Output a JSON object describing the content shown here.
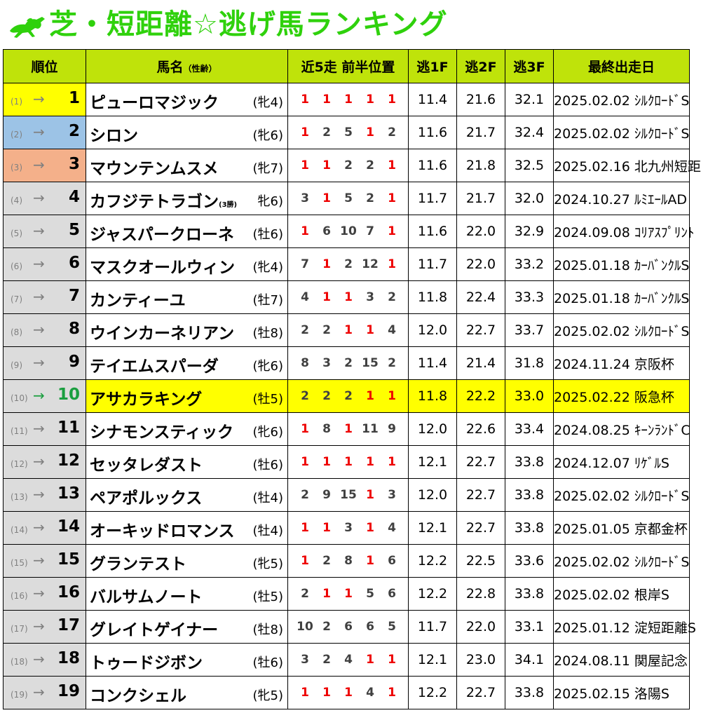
{
  "title": "芝・短距離☆逃げ馬ランキング",
  "headers": {
    "rank": "順位",
    "name": "馬名",
    "name_sub": "（性齢）",
    "pos5": "近5走 前半位置",
    "f1": "逃1F",
    "f2": "逃2F",
    "f3": "逃3F",
    "last": "最終出走日"
  },
  "colors": {
    "title": "#2fd10c",
    "header_bg": "#bfe30a",
    "gold": "#ffff00",
    "silver": "#9cc3e6",
    "bronze": "#f4b08a",
    "highlight": "#ffff00",
    "pos_one": "#ee0000",
    "up_arrow": "#1a9e3f"
  },
  "rows": [
    {
      "prev": "(1)",
      "arrow": "→",
      "rank": "1",
      "name": "ピューロマジック",
      "name_sub": "",
      "sexage": "(牝4)",
      "pos": [
        "1",
        "1",
        "1",
        "1",
        "1"
      ],
      "f1": "11.4",
      "f2": "21.6",
      "f3": "32.1",
      "date": "2025.02.02 ｼﾙｸﾛｰﾄﾞS"
    },
    {
      "prev": "(2)",
      "arrow": "→",
      "rank": "2",
      "name": "シロン",
      "name_sub": "",
      "sexage": "(牝6)",
      "pos": [
        "1",
        "2",
        "5",
        "1",
        "2"
      ],
      "f1": "11.6",
      "f2": "21.7",
      "f3": "32.4",
      "date": "2025.02.02 ｼﾙｸﾛｰﾄﾞS"
    },
    {
      "prev": "(3)",
      "arrow": "→",
      "rank": "3",
      "name": "マウンテンムスメ",
      "name_sub": "",
      "sexage": "(牝7)",
      "pos": [
        "1",
        "1",
        "2",
        "2",
        "1"
      ],
      "f1": "11.6",
      "f2": "21.8",
      "f3": "32.5",
      "date": "2025.02.16 北九州短距"
    },
    {
      "prev": "(4)",
      "arrow": "→",
      "rank": "4",
      "name": "カフジテトラゴン",
      "name_sub": "(3勝)",
      "sexage": "牝6)",
      "pos": [
        "3",
        "1",
        "5",
        "2",
        "1"
      ],
      "f1": "11.7",
      "f2": "21.7",
      "f3": "32.0",
      "date": "2024.10.27 ﾙﾐｴｰﾙAD"
    },
    {
      "prev": "(5)",
      "arrow": "→",
      "rank": "5",
      "name": "ジャスパークローネ",
      "name_sub": "",
      "sexage": "(牡6)",
      "pos": [
        "1",
        "6",
        "10",
        "7",
        "1"
      ],
      "f1": "11.6",
      "f2": "22.0",
      "f3": "32.9",
      "date": "2024.09.08 ｺﾘｱｽﾌﾟﾘﾝﾄ"
    },
    {
      "prev": "(6)",
      "arrow": "→",
      "rank": "6",
      "name": "マスクオールウィン",
      "name_sub": "",
      "sexage": "(牝4)",
      "pos": [
        "7",
        "1",
        "2",
        "12",
        "1"
      ],
      "f1": "11.7",
      "f2": "22.0",
      "f3": "33.2",
      "date": "2025.01.18 ｶｰﾊﾞﾝｸﾙS"
    },
    {
      "prev": "(7)",
      "arrow": "→",
      "rank": "7",
      "name": "カンティーユ",
      "name_sub": "",
      "sexage": "(牡7)",
      "pos": [
        "4",
        "1",
        "1",
        "3",
        "2"
      ],
      "f1": "11.8",
      "f2": "22.4",
      "f3": "33.3",
      "date": "2025.01.18 ｶｰﾊﾞﾝｸﾙS"
    },
    {
      "prev": "(8)",
      "arrow": "→",
      "rank": "8",
      "name": "ウインカーネリアン",
      "name_sub": "",
      "sexage": "(牡8)",
      "pos": [
        "2",
        "2",
        "1",
        "1",
        "4"
      ],
      "f1": "12.0",
      "f2": "22.7",
      "f3": "33.7",
      "date": "2025.02.02 ｼﾙｸﾛｰﾄﾞS"
    },
    {
      "prev": "(9)",
      "arrow": "→",
      "rank": "9",
      "name": "テイエムスパーダ",
      "name_sub": "",
      "sexage": "(牝6)",
      "pos": [
        "8",
        "3",
        "2",
        "15",
        "2"
      ],
      "f1": "11.4",
      "f2": "21.4",
      "f3": "31.8",
      "date": "2024.11.24 京阪杯"
    },
    {
      "prev": "(10)",
      "arrow": "→",
      "rank": "10",
      "name": "アサカラキング",
      "name_sub": "",
      "sexage": "(牡5)",
      "pos": [
        "2",
        "2",
        "2",
        "1",
        "1"
      ],
      "f1": "11.8",
      "f2": "22.2",
      "f3": "33.0",
      "date": "2025.02.22 阪急杯",
      "highlight": true
    },
    {
      "prev": "(11)",
      "arrow": "→",
      "rank": "11",
      "name": "シナモンスティック",
      "name_sub": "",
      "sexage": "(牝6)",
      "pos": [
        "1",
        "8",
        "1",
        "11",
        "9"
      ],
      "f1": "12.0",
      "f2": "22.6",
      "f3": "33.4",
      "date": "2024.08.25 ｷｰﾝﾗﾝﾄﾞC"
    },
    {
      "prev": "(12)",
      "arrow": "→",
      "rank": "12",
      "name": "セッタレダスト",
      "name_sub": "",
      "sexage": "(牡6)",
      "pos": [
        "1",
        "1",
        "1",
        "1",
        "1"
      ],
      "f1": "12.1",
      "f2": "22.7",
      "f3": "33.8",
      "date": "2024.12.07 ﾘｹﾞﾙS"
    },
    {
      "prev": "(13)",
      "arrow": "→",
      "rank": "13",
      "name": "ペアポルックス",
      "name_sub": "",
      "sexage": "(牡4)",
      "pos": [
        "2",
        "9",
        "15",
        "1",
        "3"
      ],
      "f1": "12.0",
      "f2": "22.7",
      "f3": "33.8",
      "date": "2025.02.02 ｼﾙｸﾛｰﾄﾞS"
    },
    {
      "prev": "(14)",
      "arrow": "→",
      "rank": "14",
      "name": "オーキッドロマンス",
      "name_sub": "",
      "sexage": "(牡4)",
      "pos": [
        "1",
        "1",
        "3",
        "1",
        "4"
      ],
      "f1": "12.1",
      "f2": "22.7",
      "f3": "33.8",
      "date": "2025.01.05 京都金杯"
    },
    {
      "prev": "(15)",
      "arrow": "→",
      "rank": "15",
      "name": "グランテスト",
      "name_sub": "",
      "sexage": "(牝5)",
      "pos": [
        "1",
        "2",
        "8",
        "1",
        "6"
      ],
      "f1": "12.2",
      "f2": "22.5",
      "f3": "33.6",
      "date": "2025.02.02 ｼﾙｸﾛｰﾄﾞS"
    },
    {
      "prev": "(16)",
      "arrow": "→",
      "rank": "16",
      "name": "バルサムノート",
      "name_sub": "",
      "sexage": "(牡5)",
      "pos": [
        "2",
        "1",
        "1",
        "5",
        "6"
      ],
      "f1": "12.2",
      "f2": "22.8",
      "f3": "33.8",
      "date": "2025.02.02 根岸S"
    },
    {
      "prev": "(17)",
      "arrow": "→",
      "rank": "17",
      "name": "グレイトゲイナー",
      "name_sub": "",
      "sexage": "(牡8)",
      "pos": [
        "10",
        "2",
        "6",
        "6",
        "5"
      ],
      "f1": "11.7",
      "f2": "22.0",
      "f3": "33.1",
      "date": "2025.01.12 淀短距離S"
    },
    {
      "prev": "(18)",
      "arrow": "→",
      "rank": "18",
      "name": "トゥードジボン",
      "name_sub": "",
      "sexage": "(牡6)",
      "pos": [
        "3",
        "2",
        "4",
        "1",
        "1"
      ],
      "f1": "12.1",
      "f2": "23.0",
      "f3": "34.1",
      "date": "2024.08.11 関屋記念"
    },
    {
      "prev": "(19)",
      "arrow": "→",
      "rank": "19",
      "name": "コンクシェル",
      "name_sub": "",
      "sexage": "(牝5)",
      "pos": [
        "1",
        "1",
        "1",
        "4",
        "1"
      ],
      "f1": "12.2",
      "f2": "22.7",
      "f3": "33.8",
      "date": "2025.02.15 洛陽S"
    }
  ]
}
